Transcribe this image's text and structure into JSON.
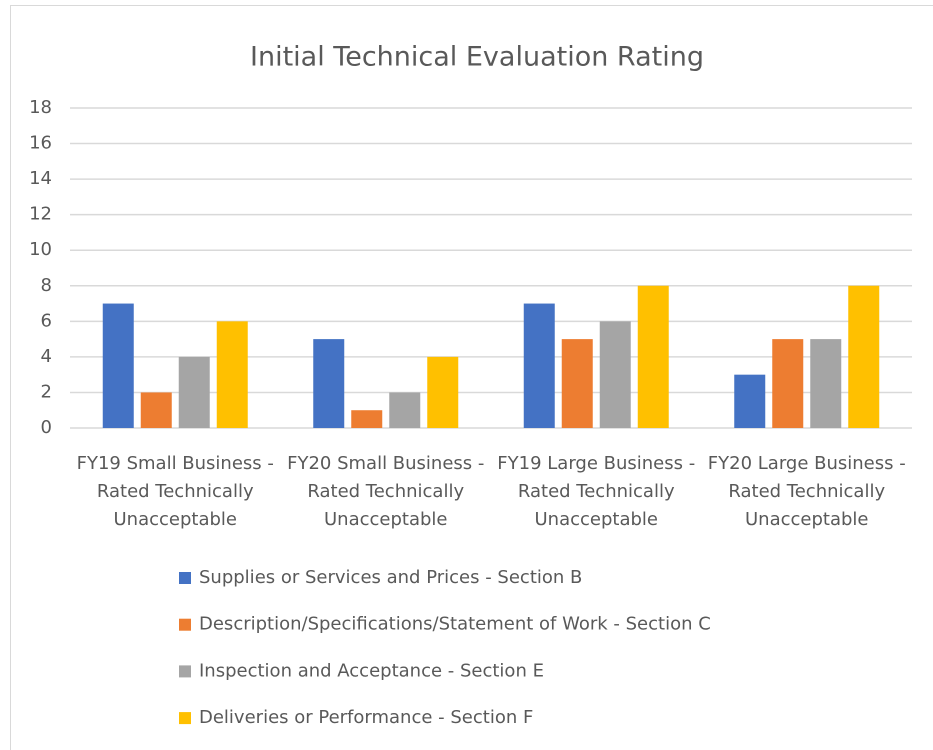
{
  "chart_data": {
    "type": "bar",
    "title": "Initial Technical Evaluation Rating",
    "categories": [
      "FY19 Small Business - Rated Technically Unacceptable",
      "FY20 Small Business - Rated Technically Unacceptable",
      "FY19 Large Business - Rated Technically Unacceptable",
      "FY20 Large Business - Rated Technically Unacceptable"
    ],
    "series": [
      {
        "name": "Supplies or Services and Prices - Section B",
        "color": "#4472c4",
        "values": [
          7,
          5,
          7,
          3
        ]
      },
      {
        "name": "Description/Specifications/Statement of Work - Section C",
        "color": "#ed7d31",
        "values": [
          2,
          1,
          5,
          5
        ]
      },
      {
        "name": "Inspection and Acceptance - Section E",
        "color": "#a5a5a5",
        "values": [
          4,
          2,
          6,
          5
        ]
      },
      {
        "name": "Deliveries or Performance - Section F",
        "color": "#ffc000",
        "values": [
          6,
          4,
          8,
          8
        ]
      }
    ],
    "ylim": [
      0,
      18
    ],
    "yticks": [
      0,
      2,
      4,
      6,
      8,
      10,
      12,
      14,
      16,
      18
    ],
    "grid": true,
    "legend": "bottom"
  }
}
